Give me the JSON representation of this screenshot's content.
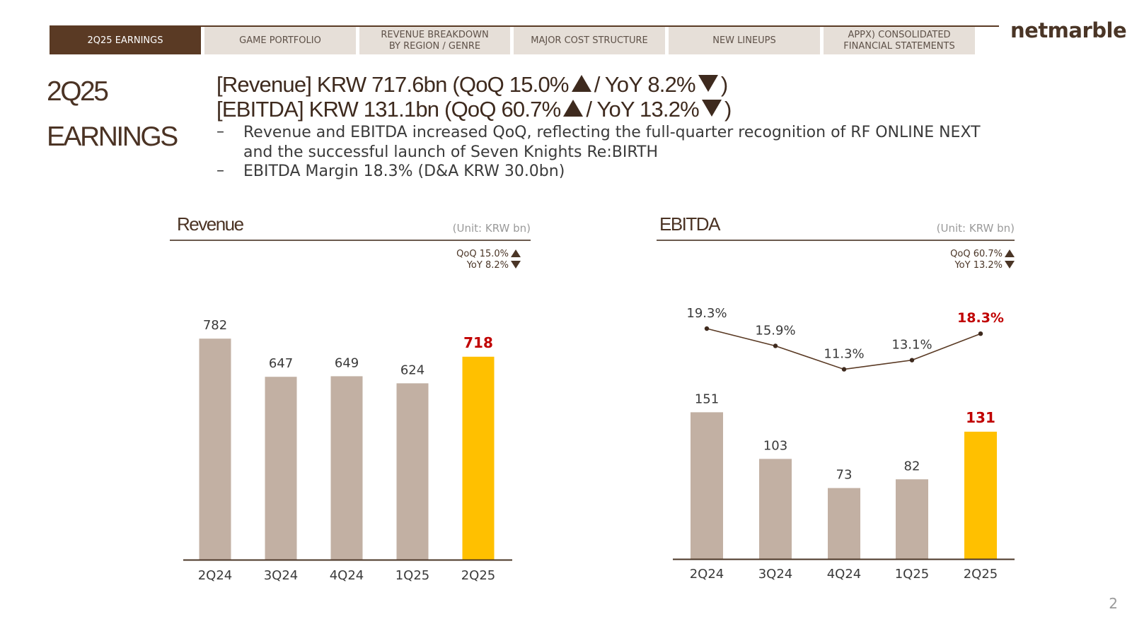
{
  "nav": {
    "tabs": [
      {
        "label": "2Q25  EARNINGS",
        "active": true
      },
      {
        "label": "GAME PORTFOLIO",
        "active": false
      },
      {
        "label": "REVENUE BREAKDOWN\nBY REGION / GENRE",
        "active": false
      },
      {
        "label": "MAJOR COST STRUCTURE",
        "active": false
      },
      {
        "label": "NEW LINEUPS",
        "active": false
      },
      {
        "label": "APPX) CONSOLIDATED\nFINANCIAL STATEMENTS",
        "active": false
      }
    ],
    "logo": "netmarble"
  },
  "page": {
    "label_line1": "2Q25",
    "label_line2": "EARNINGS",
    "headline_revenue_a": "[Revenue] KRW 717.6bn (QoQ 15.0%",
    "headline_revenue_b": "/ YoY 8.2%",
    "headline_ebitda_a": "[EBITDA] KRW 131.1bn (QoQ 60.7%",
    "headline_ebitda_b": "/ YoY 13.2%",
    "close_paren": ")",
    "bullet_mark": "–",
    "bullet1": "Revenue and EBITDA increased QoQ, reflecting the full-quarter recognition of RF ONLINE NEXT and the successful launch of Seven Knights Re:BIRTH",
    "bullet2": "EBITDA Margin 18.3% (D&A KRW 30.0bn)",
    "page_number": "2"
  },
  "colors": {
    "bar": "#c2b0a3",
    "highlight": "#ffc000",
    "accent_text": "#c00000",
    "dark": "#4b3324"
  },
  "chart_data": [
    {
      "type": "bar",
      "title": "Revenue",
      "unit": "(Unit: KRW bn)",
      "qoq": "QoQ 15.0%",
      "yoy": "YoY 8.2%",
      "categories": [
        "2Q24",
        "3Q24",
        "4Q24",
        "1Q25",
        "2Q25"
      ],
      "values": [
        782,
        647,
        649,
        624,
        718
      ],
      "highlight_index": 4,
      "ylim": [
        0,
        900
      ]
    },
    {
      "type": "bar",
      "title": "EBITDA",
      "unit": "(Unit: KRW bn)",
      "qoq": "QoQ 60.7%",
      "yoy": "YoY 13.2%",
      "categories": [
        "2Q24",
        "3Q24",
        "4Q24",
        "1Q25",
        "2Q25"
      ],
      "values": [
        151,
        103,
        73,
        82,
        131
      ],
      "margin_labels": [
        "19.3%",
        "15.9%",
        "11.3%",
        "13.1%",
        "18.3%"
      ],
      "margin_values": [
        19.3,
        15.9,
        11.3,
        13.1,
        18.3
      ],
      "highlight_index": 4,
      "ylim": [
        0,
        160
      ]
    }
  ]
}
